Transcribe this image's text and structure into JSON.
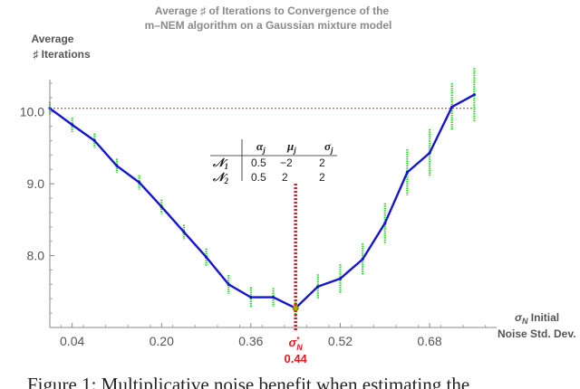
{
  "chart_data": {
    "type": "line",
    "title_lines": [
      "Average ♯ of Iterations to Convergence of the",
      "m–NEM algorithm on a Gaussian mixture model"
    ],
    "ylabel_lines": [
      "Average",
      "♯ Iterations"
    ],
    "xlabel_lines": [
      "σN Initial",
      "Noise Std. Dev."
    ],
    "xlim": [
      0.0,
      0.8
    ],
    "ylim": [
      7.0,
      10.45
    ],
    "x_ticks": [
      0.04,
      0.2,
      0.36,
      0.52,
      0.68
    ],
    "x_tick_labels": [
      "0.04",
      "0.20",
      "0.36",
      "0.52",
      "0.68"
    ],
    "y_ticks": [
      8.0,
      9.0,
      10.0
    ],
    "y_tick_labels": [
      "8.0",
      "9.0",
      "10.0"
    ],
    "series": [
      {
        "color": "#1414d2",
        "x": [
          0.0,
          0.04,
          0.08,
          0.12,
          0.16,
          0.2,
          0.24,
          0.28,
          0.32,
          0.36,
          0.4,
          0.44,
          0.48,
          0.52,
          0.56,
          0.6,
          0.64,
          0.68,
          0.72,
          0.76
        ],
        "y": [
          10.05,
          9.82,
          9.6,
          9.25,
          9.02,
          8.68,
          8.33,
          7.98,
          7.6,
          7.42,
          7.42,
          7.27,
          7.57,
          7.68,
          7.95,
          8.45,
          9.16,
          9.43,
          10.07,
          10.24
        ]
      }
    ],
    "error_bars": {
      "color": "#22dd22",
      "half_ranges": [
        0.09,
        0.1,
        0.1,
        0.1,
        0.1,
        0.1,
        0.1,
        0.12,
        0.13,
        0.14,
        0.13,
        0.12,
        0.17,
        0.2,
        0.22,
        0.28,
        0.32,
        0.33,
        0.33,
        0.37
      ]
    },
    "reference_line": {
      "y": 10.05,
      "color": "#e8191e",
      "style": "dotted"
    },
    "optimum": {
      "x": 0.44,
      "label": "σ*N",
      "value_label": "0.44",
      "color": "#e8191e"
    },
    "table": {
      "headers": [
        "αj",
        "μj",
        "σj"
      ],
      "rows": [
        {
          "label": "𝒩1",
          "values": [
            "0.5",
            "−2",
            "2"
          ]
        },
        {
          "label": "𝒩2",
          "values": [
            "0.5",
            "2",
            "2"
          ]
        }
      ]
    }
  },
  "caption": "Figure 1: Multiplicative noise benefit when estimating the"
}
